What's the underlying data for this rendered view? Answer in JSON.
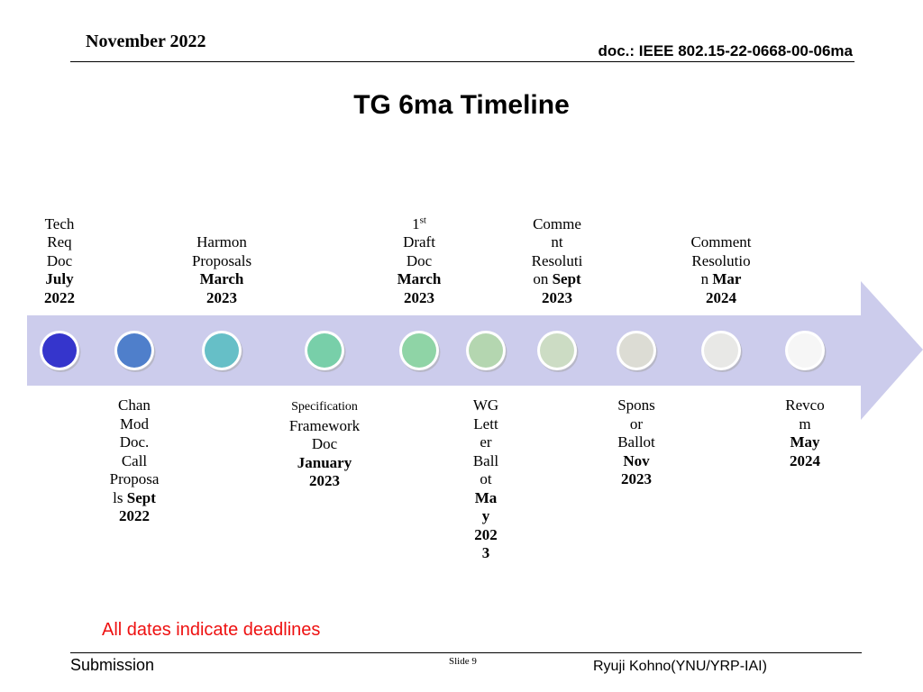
{
  "header": {
    "date": "November 2022",
    "doc_id": "doc.: IEEE 802.15-22-0668-00-06ma"
  },
  "title": "TG 6ma Timeline",
  "milestones_top": [
    {
      "lines": [
        "Tech",
        "Req",
        "Doc"
      ],
      "date_lines": [
        "July",
        "2022"
      ]
    },
    {
      "lines": [
        "Harmon",
        "Proposals"
      ],
      "date_lines": [
        "March",
        "2023"
      ]
    },
    {
      "sup_prefix": "1",
      "sup": "st",
      "lines": [
        "Draft",
        "Doc"
      ],
      "date_lines": [
        "March",
        "2023"
      ]
    },
    {
      "lines": [
        "Comme",
        "nt",
        "Resoluti",
        "on"
      ],
      "date_inline": "Sept",
      "date_lines": [
        "2023"
      ]
    },
    {
      "lines": [
        "Comment",
        "Resolutio",
        "n"
      ],
      "date_inline": "Mar",
      "date_lines": [
        "2024"
      ]
    }
  ],
  "milestones_bottom": [
    {
      "lines": [
        "Chan",
        "Mod",
        "Doc.",
        "Call",
        "Proposa",
        "ls"
      ],
      "date_inline": "Sept",
      "date_lines": [
        "2022"
      ]
    },
    {
      "small_line": "Specification",
      "lines": [
        "Framework",
        "Doc"
      ],
      "date_lines": [
        "January",
        "2023"
      ]
    },
    {
      "lines": [
        "WG",
        "Lett",
        "er",
        "Ball",
        "ot"
      ],
      "date_lines": [
        "Ma",
        "y",
        "202",
        "3"
      ]
    },
    {
      "lines": [
        "Spons",
        "or",
        "Ballot"
      ],
      "date_lines": [
        "Nov",
        "2023"
      ]
    },
    {
      "lines": [
        "Revco",
        "m"
      ],
      "date_lines": [
        "May",
        "2024"
      ]
    }
  ],
  "dots": [
    {
      "color": "#3535cc"
    },
    {
      "color": "#4f7fcb"
    },
    {
      "color": "#66bfc7"
    },
    {
      "color": "#78cfa9"
    },
    {
      "color": "#8fd4a6"
    },
    {
      "color": "#b4d6b0"
    },
    {
      "color": "#ccdcc4"
    },
    {
      "color": "#dcdcd4"
    },
    {
      "color": "#e8e8e6"
    },
    {
      "color": "#f6f6f6"
    }
  ],
  "arrow_color": "#ccccec",
  "note": "All dates indicate deadlines",
  "footer": {
    "left": "Submission",
    "slide": "Slide 9",
    "right": "Ryuji Kohno(YNU/YRP-IAI)"
  }
}
